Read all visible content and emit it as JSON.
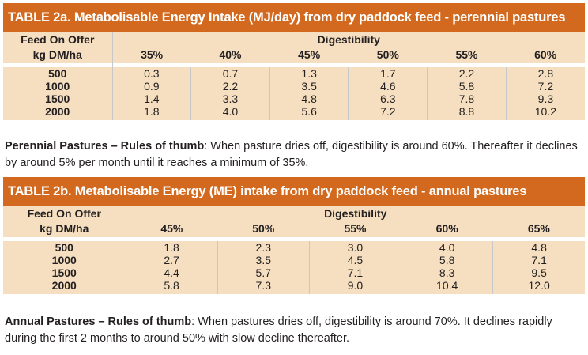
{
  "table_a": {
    "title": "TABLE 2a. Metabolisable Energy Intake (MJ/day) from dry paddock feed - perennial pastures",
    "row_header_line1": "Feed On Offer",
    "row_header_line2": "kg DM/ha",
    "column_group": "Digestibility",
    "columns": [
      "35%",
      "40%",
      "45%",
      "50%",
      "55%",
      "60%"
    ],
    "rows": [
      {
        "feed": "500",
        "values": [
          "0.3",
          "0.7",
          "1.3",
          "1.7",
          "2.2",
          "2.8"
        ]
      },
      {
        "feed": "1000",
        "values": [
          "0.9",
          "2.2",
          "3.5",
          "4.6",
          "5.8",
          "7.2"
        ]
      },
      {
        "feed": "1500",
        "values": [
          "1.4",
          "3.3",
          "4.8",
          "6.3",
          "7.8",
          "9.3"
        ]
      },
      {
        "feed": "2000",
        "values": [
          "1.8",
          "4.0",
          "5.6",
          "7.2",
          "8.8",
          "10.2"
        ]
      }
    ]
  },
  "note_a": {
    "lead": "Perennial Pastures – Rules of thumb",
    "text": ": When pasture dries off, digestibility is around 60%. Thereafter it declines by around 5% per month until it reaches a minimum of 35%."
  },
  "table_b": {
    "title": "TABLE 2b. Metabolisable Energy (ME) intake from dry paddock feed - annual pastures",
    "row_header_line1": "Feed On Offer",
    "row_header_line2": "kg DM/ha",
    "column_group": "Digestibility",
    "columns": [
      "45%",
      "50%",
      "55%",
      "60%",
      "65%"
    ],
    "rows": [
      {
        "feed": "500",
        "values": [
          "1.8",
          "2.3",
          "3.0",
          "4.0",
          "4.8"
        ]
      },
      {
        "feed": "1000",
        "values": [
          "2.7",
          "3.5",
          "4.5",
          "5.8",
          "7.1"
        ]
      },
      {
        "feed": "1500",
        "values": [
          "4.4",
          "5.7",
          "7.1",
          "8.3",
          "9.5"
        ]
      },
      {
        "feed": "2000",
        "values": [
          "5.8",
          "7.3",
          "9.0",
          "10.4",
          "12.0"
        ]
      }
    ]
  },
  "note_b": {
    "lead": "Annual Pastures – Rules of thumb",
    "text": ": When pastures dries off, digestibility is around 70%. It declines rapidly during the first 2 months to around 50% with slow decline thereafter."
  },
  "colors": {
    "title_bar": "#d2691e",
    "table_fill": "#f5dfc0",
    "text": "#231f20"
  }
}
